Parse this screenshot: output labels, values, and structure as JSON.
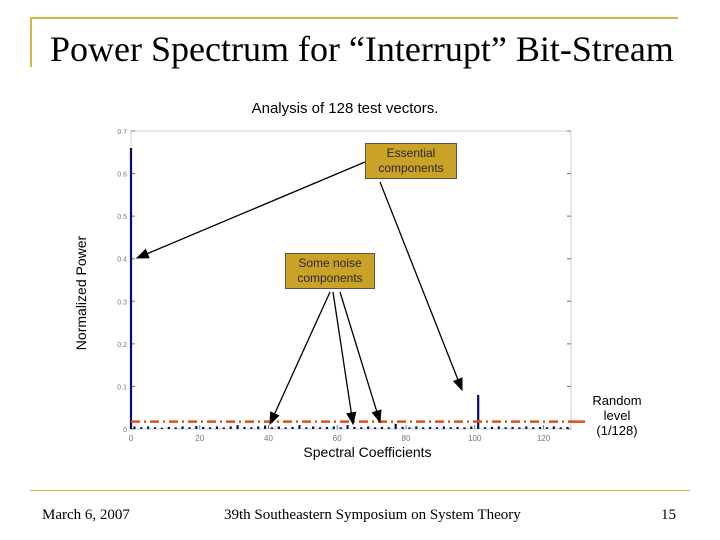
{
  "slide": {
    "title": "Power Spectrum for “Interrupt” Bit-Stream",
    "subtitle": "Analysis of 128 test vectors.",
    "footer_date": "March 6, 2007",
    "footer_event": "39th Southeastern Symposium on System Theory",
    "page_number": "15"
  },
  "annotations": {
    "essential": "Essential components",
    "noise": "Some noise components",
    "random_level": "Random level (1/128)"
  },
  "colors": {
    "frame": "#d4b84a",
    "bars": "#0a0a6e",
    "random_line": "#e05010",
    "callout": "#c9a227"
  },
  "chart_data": {
    "type": "bar",
    "title": "",
    "xlabel": "Spectral Coefficients",
    "ylabel": "Normalized Power",
    "xlim": [
      0,
      128
    ],
    "ylim": [
      0,
      0.7
    ],
    "xticks": [
      0,
      20,
      40,
      60,
      80,
      100,
      120
    ],
    "yticks": [
      0,
      0.1,
      0.2,
      0.3,
      0.4,
      0.5,
      0.6,
      0.7
    ],
    "random_level": 0.0078125,
    "x": [
      0,
      1,
      3,
      5,
      7,
      9,
      11,
      13,
      15,
      17,
      19,
      21,
      23,
      25,
      27,
      29,
      31,
      33,
      35,
      37,
      39,
      41,
      43,
      45,
      47,
      49,
      51,
      53,
      55,
      57,
      59,
      61,
      63,
      65,
      67,
      69,
      71,
      73,
      75,
      77,
      79,
      81,
      83,
      85,
      87,
      89,
      91,
      93,
      95,
      97,
      99,
      101,
      103,
      105,
      107,
      109,
      111,
      113,
      115,
      117,
      119,
      121,
      123,
      125,
      127
    ],
    "values": [
      0.66,
      0.006,
      0.004,
      0.006,
      0.004,
      0.003,
      0.005,
      0.004,
      0.006,
      0.004,
      0.007,
      0.005,
      0.004,
      0.006,
      0.004,
      0.006,
      0.009,
      0.005,
      0.004,
      0.006,
      0.008,
      0.004,
      0.006,
      0.004,
      0.005,
      0.009,
      0.004,
      0.006,
      0.004,
      0.005,
      0.006,
      0.004,
      0.009,
      0.005,
      0.004,
      0.006,
      0.004,
      0.005,
      0.004,
      0.012,
      0.005,
      0.004,
      0.006,
      0.004,
      0.005,
      0.004,
      0.006,
      0.004,
      0.005,
      0.004,
      0.006,
      0.08,
      0.004,
      0.005,
      0.006,
      0.004,
      0.005,
      0.004,
      0.006,
      0.004,
      0.005,
      0.004,
      0.006,
      0.004,
      0.005
    ]
  }
}
